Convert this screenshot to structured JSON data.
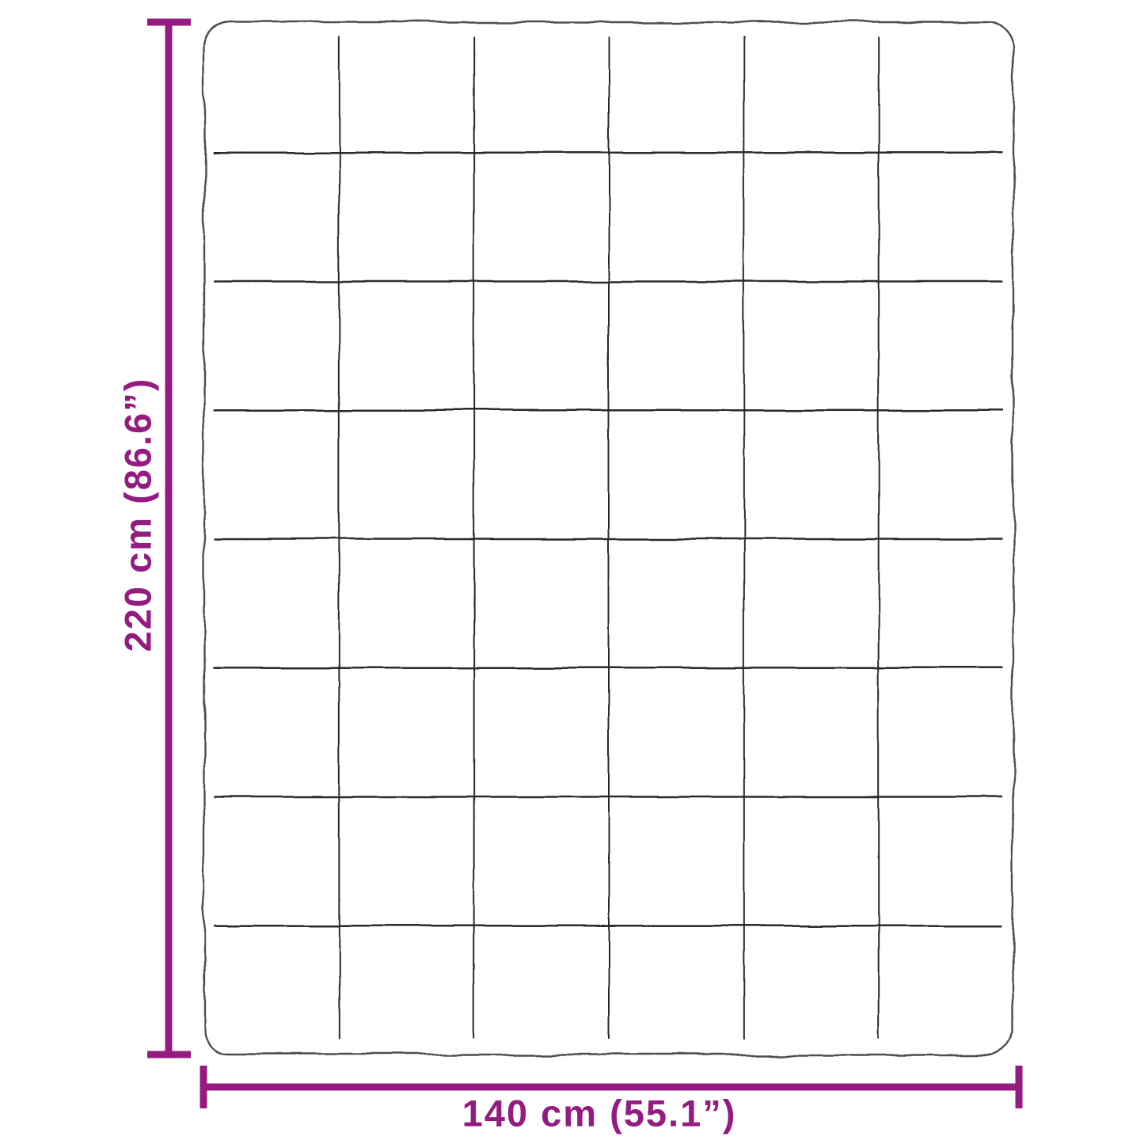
{
  "diagram": {
    "kind": "product-dimension-diagram",
    "product": "quilted-blanket",
    "height_label": "220 cm (86.6”)",
    "width_label": "140 cm (55.1”)",
    "accent_color": "#941b80",
    "outline_color": "#4d4d4d",
    "grid_color": "#2b2b2b",
    "background_color": "#ffffff",
    "grid": {
      "columns": 6,
      "rows": 8
    }
  }
}
